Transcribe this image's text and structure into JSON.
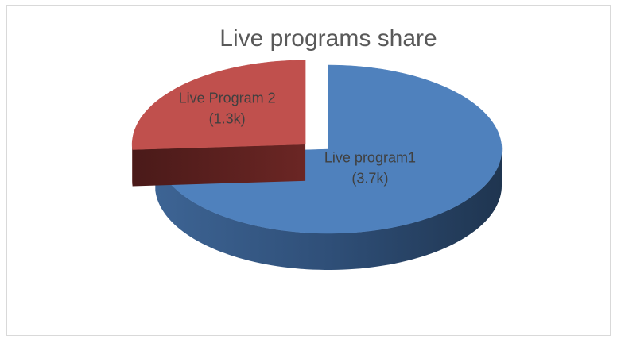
{
  "chart_data": {
    "type": "pie",
    "title": "Live programs share",
    "categories": [
      "Live program1",
      "Live Program 2"
    ],
    "values": [
      3700,
      1300
    ],
    "value_labels": [
      "(3.7k)",
      "(1.3k)"
    ],
    "colors": [
      "#4f81bd",
      "#c0504d"
    ]
  }
}
